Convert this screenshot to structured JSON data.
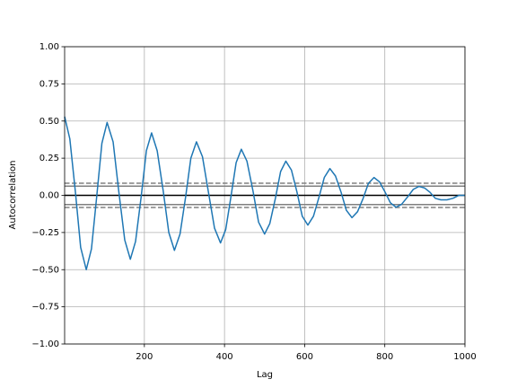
{
  "chart_data": {
    "type": "line",
    "xlabel": "Lag",
    "ylabel": "Autocorrelation",
    "x": [
      1,
      14,
      28,
      41,
      55,
      68,
      81,
      94,
      107,
      122,
      136,
      151,
      165,
      178,
      192,
      205,
      218,
      232,
      247,
      261,
      275,
      289,
      303,
      316,
      330,
      345,
      360,
      375,
      390,
      403,
      416,
      429,
      442,
      456,
      471,
      485,
      500,
      513,
      527,
      540,
      553,
      567,
      581,
      594,
      608,
      622,
      636,
      649,
      663,
      677,
      691,
      704,
      718,
      732,
      746,
      759,
      773,
      787,
      801,
      814,
      828,
      842,
      857,
      871,
      885,
      899,
      913,
      926,
      940,
      955,
      970,
      985,
      1000
    ],
    "values": [
      0.53,
      0.38,
      0.02,
      -0.35,
      -0.5,
      -0.36,
      -0.01,
      0.35,
      0.49,
      0.36,
      0.03,
      -0.3,
      -0.43,
      -0.31,
      -0.01,
      0.3,
      0.42,
      0.3,
      0.03,
      -0.25,
      -0.37,
      -0.26,
      -0.01,
      0.25,
      0.36,
      0.26,
      0.02,
      -0.22,
      -0.32,
      -0.23,
      -0.01,
      0.22,
      0.31,
      0.23,
      0.03,
      -0.18,
      -0.26,
      -0.19,
      -0.02,
      0.16,
      0.23,
      0.17,
      0.02,
      -0.14,
      -0.2,
      -0.14,
      -0.01,
      0.12,
      0.18,
      0.13,
      0.02,
      -0.1,
      -0.15,
      -0.11,
      -0.02,
      0.08,
      0.12,
      0.09,
      0.02,
      -0.05,
      -0.08,
      -0.06,
      -0.01,
      0.04,
      0.06,
      0.05,
      0.02,
      -0.02,
      -0.03,
      -0.03,
      -0.02,
      0.0,
      0.0
    ],
    "color": "#1f77b4",
    "hlines": [
      {
        "value": 0.0815,
        "color": "grey",
        "dashed": true
      },
      {
        "value": 0.062,
        "color": "grey",
        "dashed": false
      },
      {
        "value": 0,
        "color": "black",
        "dashed": false
      },
      {
        "value": -0.062,
        "color": "grey",
        "dashed": false
      },
      {
        "value": -0.0815,
        "color": "grey",
        "dashed": true
      }
    ],
    "xlim": [
      1,
      1000
    ],
    "xticks": [
      200,
      400,
      600,
      800,
      1000
    ],
    "ylim": [
      -1,
      1
    ],
    "yticks": [
      {
        "value": -1,
        "label": "−1.00"
      },
      {
        "value": -0.75,
        "label": "−0.75"
      },
      {
        "value": -0.5,
        "label": "−0.50"
      },
      {
        "value": -0.25,
        "label": "−0.25"
      },
      {
        "value": 0,
        "label": "0.00"
      },
      {
        "value": 0.25,
        "label": "0.25"
      },
      {
        "value": 0.5,
        "label": "0.50"
      },
      {
        "value": 0.75,
        "label": "0.75"
      },
      {
        "value": 1,
        "label": "1.00"
      }
    ],
    "grid": true
  }
}
